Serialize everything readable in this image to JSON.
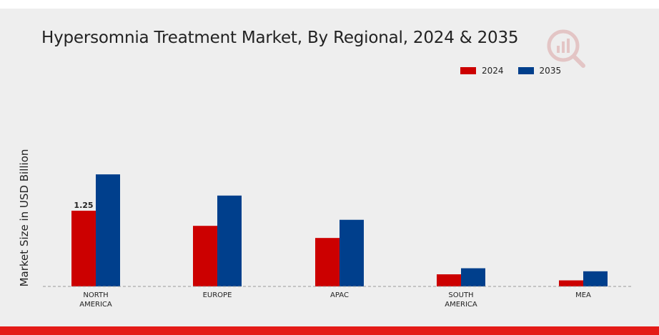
{
  "chart_data": {
    "type": "bar",
    "title": "Hypersomnia Treatment Market, By Regional, 2024 & 2035",
    "xlabel": "",
    "ylabel": "Market Size in USD Billion",
    "categories": [
      "NORTH AMERICA",
      "EUROPE",
      "APAC",
      "SOUTH AMERICA",
      "MEA"
    ],
    "category_lines": [
      [
        "NORTH",
        "AMERICA"
      ],
      [
        "EUROPE"
      ],
      [
        "APAC"
      ],
      [
        "SOUTH",
        "AMERICA"
      ],
      [
        "MEA"
      ]
    ],
    "series": [
      {
        "name": "2024",
        "color": "#cc0000",
        "values": [
          1.25,
          1.0,
          0.8,
          0.2,
          0.1
        ]
      },
      {
        "name": "2035",
        "color": "#003f8c",
        "values": [
          1.85,
          1.5,
          1.1,
          0.3,
          0.25
        ]
      }
    ],
    "data_labels": [
      {
        "series": 0,
        "index": 0,
        "text": "1.25"
      }
    ],
    "ylim": [
      0,
      2.0
    ],
    "grid": false,
    "legend_position": "top-right"
  },
  "colors": {
    "background": "#eeeeee",
    "accent_bar": "#e41b17",
    "baseline": "#999999"
  },
  "icons": {
    "logo": "brand-logo-icon"
  }
}
